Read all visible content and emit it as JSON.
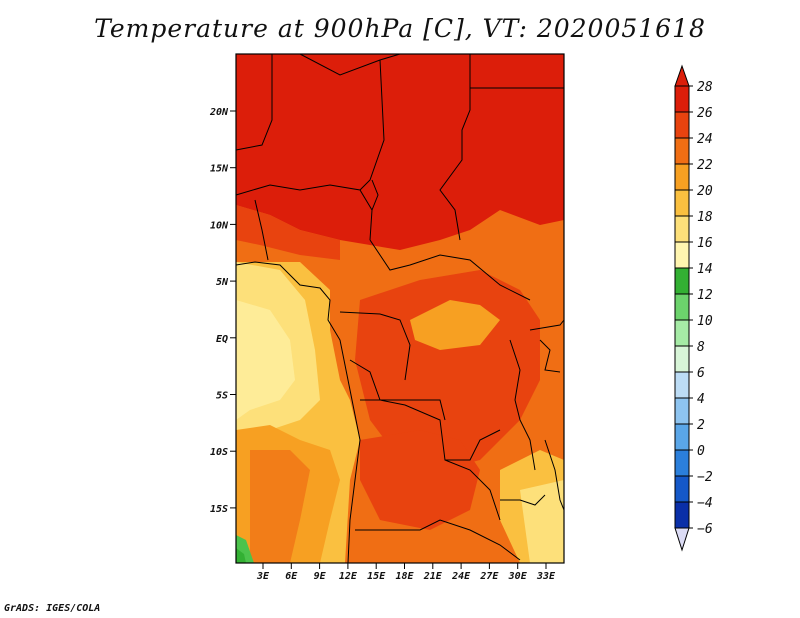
{
  "title": "Temperature at 900hPa [C], VT: 2020051618",
  "credit": "GrADS: IGES/COLA",
  "map": {
    "lat_labels": [
      "20N",
      "15N",
      "10N",
      "5N",
      "EQ",
      "5S",
      "10S",
      "15S"
    ],
    "lon_labels": [
      "3E",
      "6E",
      "9E",
      "12E",
      "15E",
      "18E",
      "21E",
      "24E",
      "27E",
      "30E",
      "33E"
    ],
    "field_colors": {
      "hot_28": "#dc1e0a",
      "band_26": "#e8430f",
      "band_24": "#f06e14",
      "band_22": "#f7a022",
      "band_20": "#fac040",
      "band_18": "#fde07a",
      "band_16": "#fff5b0",
      "green": "#4cc34c"
    }
  },
  "colorbar": {
    "levels": [
      "28",
      "26",
      "24",
      "22",
      "20",
      "18",
      "16",
      "14",
      "12",
      "10",
      "8",
      "6",
      "4",
      "2",
      "0",
      "−2",
      "−4",
      "−6"
    ],
    "colors": [
      "#dc1e0a",
      "#e8430f",
      "#f06e14",
      "#f7a022",
      "#fac040",
      "#fde07a",
      "#fff5b0",
      "#33b033",
      "#6cd36c",
      "#a6eba6",
      "#d8f5d8",
      "#bcdcf5",
      "#8ec4f0",
      "#5aa6e8",
      "#2b7fdb",
      "#1558c8",
      "#0a2fa8",
      "#0a1070"
    ],
    "top_arrow_color": "#dc1e0a",
    "bottom_arrow_color": "#dcdcf5"
  }
}
